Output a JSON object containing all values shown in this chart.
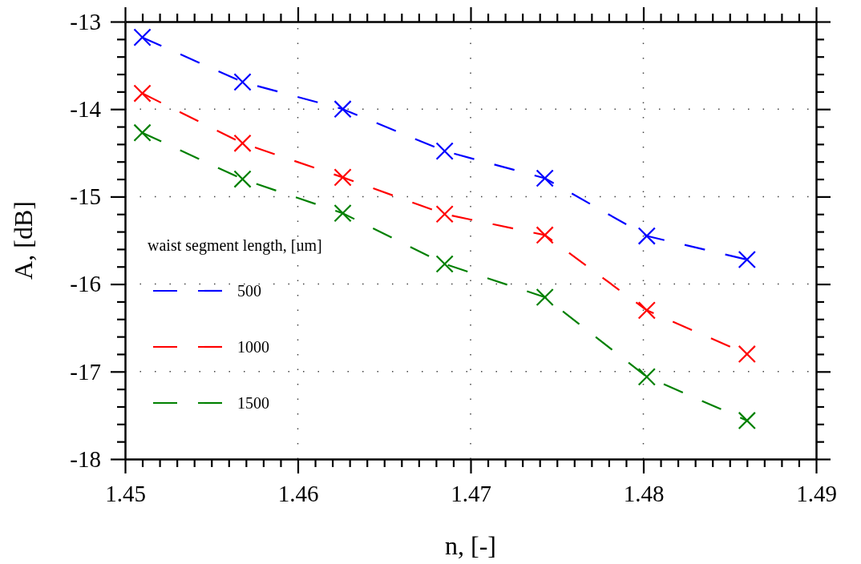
{
  "chart_data": {
    "type": "line",
    "xlabel": "n, [-]",
    "ylabel": "A, [dB]",
    "legend_title": "waist segment length, [um]",
    "legend": "bottom left",
    "marker": "cross",
    "line_style": "dashed",
    "grid": true,
    "x": [
      1.451,
      1.4568,
      1.4626,
      1.4685,
      1.4743,
      1.4802,
      1.486
    ],
    "series": [
      {
        "name": "500",
        "color": "#0000ff",
        "values": [
          -13.18,
          -13.69,
          -14.0,
          -14.48,
          -14.79,
          -15.45,
          -15.72
        ]
      },
      {
        "name": "1000",
        "color": "#ff0000",
        "values": [
          -13.82,
          -14.39,
          -14.78,
          -15.2,
          -15.44,
          -16.3,
          -16.8
        ]
      },
      {
        "name": "1500",
        "color": "#008000",
        "values": [
          -14.27,
          -14.8,
          -15.19,
          -15.77,
          -16.15,
          -17.06,
          -17.56
        ]
      }
    ],
    "xlim": [
      1.45,
      1.49
    ],
    "ylim": [
      -18,
      -13
    ],
    "xticks": [
      1.45,
      {
        "value": 1.451,
        "label": null
      },
      {
        "value": 1.452,
        "label": null
      },
      {
        "value": 1.453,
        "label": null
      },
      {
        "value": 1.454,
        "label": null
      },
      {
        "value": 1.455,
        "label": null
      },
      {
        "value": 1.456,
        "label": null
      },
      {
        "value": 1.457,
        "label": null
      },
      {
        "value": 1.458,
        "label": null
      },
      {
        "value": 1.459,
        "label": null
      },
      1.46,
      {
        "value": 1.461,
        "label": null
      },
      {
        "value": 1.462,
        "label": null
      },
      {
        "value": 1.463,
        "label": null
      },
      {
        "value": 1.464,
        "label": null
      },
      {
        "value": 1.465,
        "label": null
      },
      {
        "value": 1.466,
        "label": null
      },
      {
        "value": 1.467,
        "label": null
      },
      {
        "value": 1.468,
        "label": null
      },
      {
        "value": 1.469,
        "label": null
      },
      1.47,
      {
        "value": 1.471,
        "label": null
      },
      {
        "value": 1.472,
        "label": null
      },
      {
        "value": 1.473,
        "label": null
      },
      {
        "value": 1.474,
        "label": null
      },
      {
        "value": 1.475,
        "label": null
      },
      {
        "value": 1.476,
        "label": null
      },
      {
        "value": 1.477,
        "label": null
      },
      {
        "value": 1.478,
        "label": null
      },
      {
        "value": 1.479,
        "label": null
      },
      1.48,
      {
        "value": 1.481,
        "label": null
      },
      {
        "value": 1.482,
        "label": null
      },
      {
        "value": 1.483,
        "label": null
      },
      {
        "value": 1.484,
        "label": null
      },
      {
        "value": 1.485,
        "label": null
      },
      {
        "value": 1.486,
        "label": null
      },
      {
        "value": 1.487,
        "label": null
      },
      {
        "value": 1.488,
        "label": null
      },
      {
        "value": 1.489,
        "label": null
      },
      1.49
    ],
    "yticks": [
      -18,
      {
        "value": -17.8,
        "label": null
      },
      {
        "value": -17.6,
        "label": null
      },
      {
        "value": -17.4,
        "label": null
      },
      {
        "value": -17.2,
        "label": null
      },
      -17,
      {
        "value": -16.8,
        "label": null
      },
      {
        "value": -16.6,
        "label": null
      },
      {
        "value": -16.4,
        "label": null
      },
      {
        "value": -16.2,
        "label": null
      },
      -16,
      {
        "value": -15.8,
        "label": null
      },
      {
        "value": -15.6,
        "label": null
      },
      {
        "value": -15.4,
        "label": null
      },
      {
        "value": -15.2,
        "label": null
      },
      -15,
      {
        "value": -14.8,
        "label": null
      },
      {
        "value": -14.6,
        "label": null
      },
      {
        "value": -14.4,
        "label": null
      },
      {
        "value": -14.2,
        "label": null
      },
      -14,
      {
        "value": -13.8,
        "label": null
      },
      {
        "value": -13.6,
        "label": null
      },
      {
        "value": -13.4,
        "label": null
      },
      {
        "value": -13.2,
        "label": null
      },
      -13
    ]
  }
}
